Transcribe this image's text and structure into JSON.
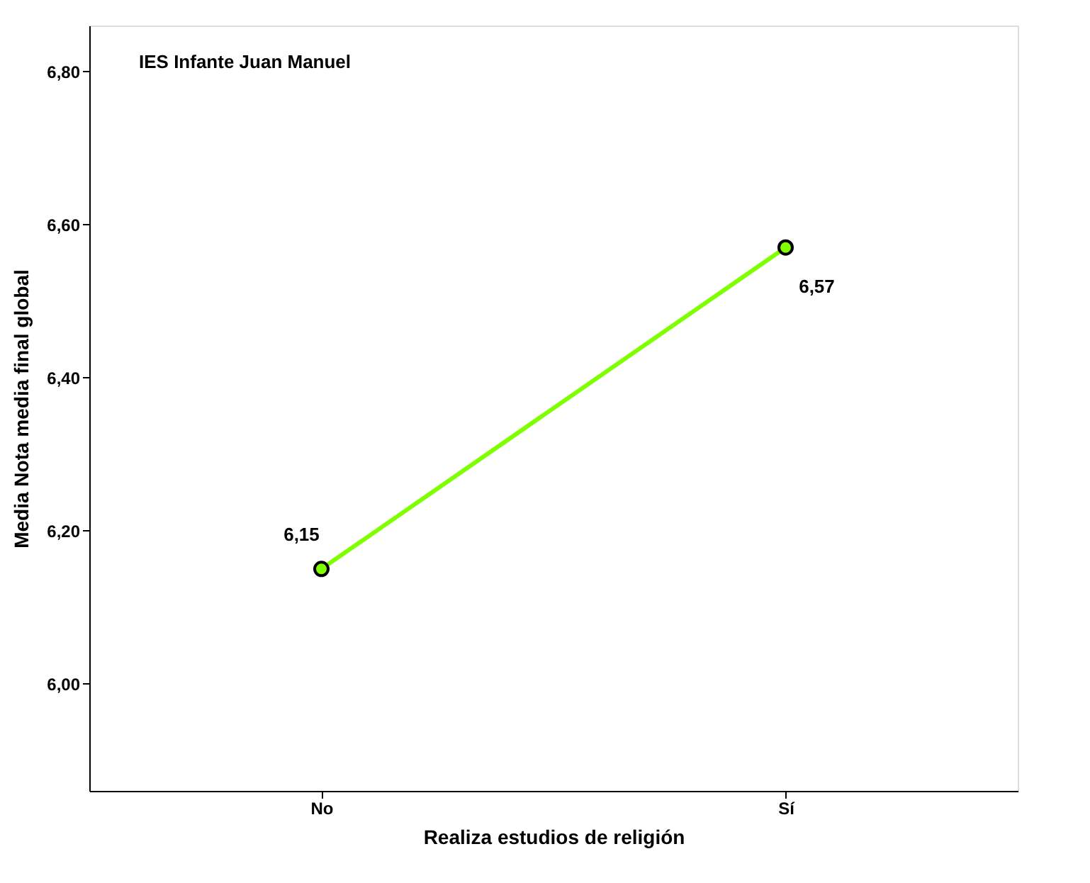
{
  "chart_data": {
    "type": "line",
    "xlabel": "Realiza estudios de religión",
    "ylabel": "Media Nota media final global",
    "categories": [
      "No",
      "Sí"
    ],
    "series": [
      {
        "color": "#7fff00",
        "values": [
          6.15,
          6.57
        ],
        "value_labels": [
          "6,15",
          "6,57"
        ]
      }
    ],
    "ylim": [
      5.86,
      6.86
    ],
    "yticks": [
      {
        "value": 6.0,
        "label": "6,00"
      },
      {
        "value": 6.2,
        "label": "6,20"
      },
      {
        "value": 6.4,
        "label": "6,40"
      },
      {
        "value": 6.6,
        "label": "6,60"
      },
      {
        "value": 6.8,
        "label": "6,80"
      }
    ],
    "annotations": [
      "IES Infante Juan Manuel"
    ],
    "marker": "circle",
    "line_style": "solid",
    "grid": false
  }
}
